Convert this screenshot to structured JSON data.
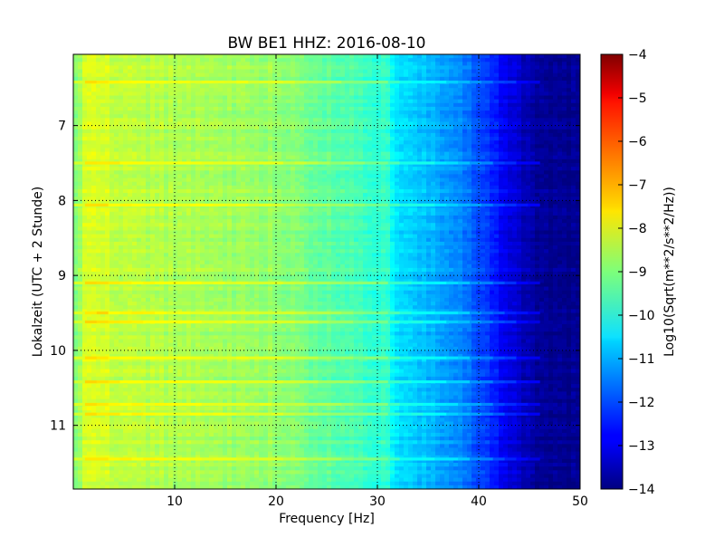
{
  "chart_data": {
    "type": "heatmap",
    "title": "BW BE1 HHZ: 2016-08-10",
    "xlabel": "Frequency [Hz]",
    "ylabel": "Lokalzeit (UTC + 2 Stunde)",
    "xlim": [
      0,
      50
    ],
    "ylim": [
      11.85,
      6.05
    ],
    "y_axis_inverted": true,
    "xticks": [
      10,
      20,
      30,
      40,
      50
    ],
    "yticks": [
      7,
      8,
      9,
      10,
      11
    ],
    "grid": true,
    "grid_style": "dotted",
    "colorbar": {
      "label": "Log10(Sqrt(m**2/s**2/Hz))",
      "range": [
        -14,
        -4
      ],
      "ticks": [
        -14,
        -13,
        -12,
        -11,
        -10,
        -9,
        -8,
        -7,
        -6,
        -5,
        -4
      ],
      "colormap": "jet"
    },
    "spectrum_profile": {
      "frequency_hz": [
        0.5,
        1,
        2,
        3,
        5,
        8,
        12,
        16,
        20,
        24,
        28,
        31,
        32,
        35,
        38,
        40,
        42,
        44,
        46,
        50
      ],
      "log10_amplitude": [
        -9.0,
        -8.2,
        -8.1,
        -8.2,
        -8.4,
        -8.5,
        -8.6,
        -8.7,
        -8.8,
        -9.2,
        -9.6,
        -9.8,
        -10.6,
        -10.9,
        -11.4,
        -12.0,
        -12.7,
        -13.3,
        -13.8,
        -13.9
      ]
    },
    "bright_bands_hours": [
      6.42,
      7.5,
      8.06,
      9.1,
      9.5,
      9.62,
      10.1,
      10.42,
      10.72,
      10.85,
      11.45
    ]
  }
}
